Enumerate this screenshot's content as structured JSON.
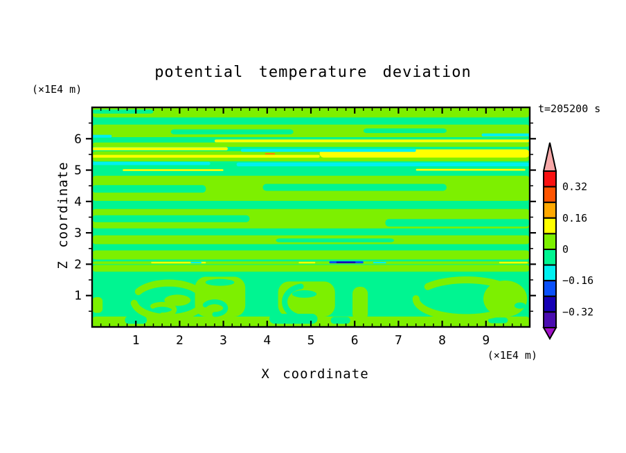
{
  "title": "potential temperature deviation",
  "annotations": {
    "time_label": "t=205200 s",
    "z_axis_unit": "(×1E4 m)",
    "x_axis_unit": "(×1E4 m)"
  },
  "axes": {
    "x": {
      "label": "X coordinate",
      "unit": "(×1E4 m)",
      "range": [
        0,
        10
      ],
      "major_ticks": [
        1,
        2,
        3,
        4,
        5,
        6,
        7,
        8,
        9
      ],
      "minor_step": 0.2
    },
    "z": {
      "label": "Z coordinate",
      "unit": "(×1E4 m)",
      "range": [
        0,
        7
      ],
      "major_ticks": [
        1,
        2,
        3,
        4,
        5,
        6
      ],
      "minor_step": 0.5
    }
  },
  "colorbar": {
    "labels": [
      "0.32",
      "0.16",
      "0",
      "−0.16",
      "−0.32"
    ],
    "labeled_boundaries": [
      1,
      3,
      5,
      7,
      9
    ],
    "segment_colors_top_to_bottom": [
      "#FA1111",
      "#FF5400",
      "#FFA800",
      "#FFFF00",
      "#7DF000",
      "#00F591",
      "#00F0F0",
      "#0A50FA",
      "#1500B4",
      "#4A0DB0"
    ],
    "over_color": "#F7A8A8",
    "under_color": "#A012C8",
    "outline_color": "#000000"
  },
  "chart_data": {
    "type": "heatmap",
    "subtype": "filled_contour",
    "title": "potential temperature deviation",
    "xlabel": "X coordinate",
    "ylabel": "Z coordinate",
    "x_unit": "(×1E4 m)",
    "z_unit": "(×1E4 m)",
    "time_annotation": "t=205200 s",
    "x_range": [
      0,
      10
    ],
    "z_range": [
      0,
      7
    ],
    "contour_interval": 0.08,
    "level_boundaries": [
      0.4,
      0.32,
      0.24,
      0.16,
      0.08,
      0,
      -0.08,
      -0.16,
      -0.24,
      -0.32,
      -0.4
    ],
    "labeled_levels": [
      0.32,
      0.16,
      0,
      -0.16,
      -0.32
    ],
    "palette": {
      "ch": "#7DF000",
      "sg": "#00F591",
      "ye": "#FFFF00",
      "cy": "#00F0F0",
      "or": "#FF8000",
      "bl": "#0A50FA",
      "nv": "#1500B4"
    },
    "legend_position": "right",
    "grid": false,
    "field": {
      "base": "sg",
      "rects": [
        {
          "x0": 0,
          "x1": 10,
          "z0": 6.68,
          "z1": 7.02,
          "c": "ch"
        },
        {
          "x0": 0,
          "x1": 10,
          "z0": 6.05,
          "z1": 6.45,
          "c": "ch"
        },
        {
          "x0": 0,
          "x1": 10,
          "z0": 5.74,
          "z1": 5.88,
          "c": "ch"
        },
        {
          "x0": 0,
          "x1": 10,
          "z0": 5.28,
          "z1": 5.6,
          "c": "ch"
        },
        {
          "x0": 0,
          "x1": 10,
          "z0": 4.02,
          "z1": 4.82,
          "c": "ch"
        },
        {
          "x0": 0,
          "x1": 10,
          "z0": 3.14,
          "z1": 3.76,
          "c": "ch"
        },
        {
          "x0": 0,
          "x1": 10,
          "z0": 2.64,
          "z1": 2.92,
          "c": "ch"
        },
        {
          "x0": 0,
          "x1": 10,
          "z0": 2.15,
          "z1": 2.44,
          "c": "ch"
        },
        {
          "x0": 0,
          "x1": 10,
          "z0": 2.0,
          "z1": 2.09,
          "c": "ch"
        },
        {
          "x0": 0,
          "x1": 10,
          "z0": 1.76,
          "z1": 1.98,
          "c": "ch"
        },
        {
          "x0": 0,
          "x1": 10,
          "z0": 0.0,
          "z1": 0.33,
          "c": "ch"
        },
        {
          "x0": 0,
          "x1": 1.4,
          "z0": 6.8,
          "z1": 6.93,
          "c": "sg"
        },
        {
          "x0": 1.8,
          "x1": 4.6,
          "z0": 6.14,
          "z1": 6.3,
          "c": "sg"
        },
        {
          "x0": 6.2,
          "x1": 8.1,
          "z0": 6.18,
          "z1": 6.33,
          "c": "sg"
        },
        {
          "x0": 0,
          "x1": 2.6,
          "z0": 4.28,
          "z1": 4.52,
          "c": "sg"
        },
        {
          "x0": 3.9,
          "x1": 8.1,
          "z0": 4.34,
          "z1": 4.56,
          "c": "sg"
        },
        {
          "x0": 0,
          "x1": 3.6,
          "z0": 3.34,
          "z1": 3.56,
          "c": "sg"
        },
        {
          "x0": 6.7,
          "x1": 10,
          "z0": 3.2,
          "z1": 3.44,
          "c": "sg"
        },
        {
          "x0": 4.2,
          "x1": 6.9,
          "z0": 2.7,
          "z1": 2.82,
          "c": "sg"
        },
        {
          "x0": 0.75,
          "x1": 1.25,
          "z0": 0.1,
          "z1": 0.34,
          "c": "sg"
        },
        {
          "x0": 5.45,
          "x1": 5.9,
          "z0": 0.1,
          "z1": 0.32,
          "c": "sg"
        },
        {
          "x0": 9.05,
          "x1": 9.5,
          "z0": 0.12,
          "z1": 0.3,
          "c": "sg"
        },
        {
          "x0": 2.35,
          "x1": 3.5,
          "z0": 0.33,
          "z1": 1.6,
          "c": "ch",
          "r": 16
        },
        {
          "x0": 4.25,
          "x1": 5.55,
          "z0": 0.33,
          "z1": 1.45,
          "c": "ch",
          "r": 16
        },
        {
          "x0": 5.95,
          "x1": 6.3,
          "z0": 0.2,
          "z1": 1.28,
          "c": "ch",
          "r": 10
        },
        {
          "x0": 0.0,
          "x1": 0.24,
          "z0": 0.45,
          "z1": 0.95,
          "c": "ch",
          "r": 6
        },
        {
          "x0": 4.05,
          "x1": 5.15,
          "z0": 0.1,
          "z1": 0.42,
          "c": "sg",
          "r": 8
        }
      ],
      "arcs": [
        {
          "cx": 1.75,
          "cz": 0.85,
          "rx": 0.8,
          "rz": 0.55,
          "a0": 150,
          "a1": -170,
          "w": 10,
          "c": "ch"
        },
        {
          "cx": 1.6,
          "cz": 0.55,
          "rx": 0.28,
          "rz": 0.17,
          "a0": -90,
          "a1": 140,
          "w": 7,
          "c": "ch"
        },
        {
          "cx": 8.55,
          "cz": 0.9,
          "rx": 1.15,
          "rz": 0.6,
          "a0": 140,
          "a1": -180,
          "w": 10,
          "c": "ch"
        },
        {
          "cx": 2.8,
          "cz": 0.6,
          "rx": 0.25,
          "rz": 0.2,
          "a0": -90,
          "a1": 150,
          "w": 7,
          "c": "sg"
        },
        {
          "cx": 4.85,
          "cz": 0.8,
          "rx": 0.45,
          "rz": 0.5,
          "a0": 100,
          "a1": 260,
          "w": 8,
          "c": "sg"
        }
      ],
      "ellipses": [
        {
          "cx": 1.95,
          "cz": 0.85,
          "rx": 0.3,
          "rz": 0.18,
          "c": "ch"
        },
        {
          "cx": 2.92,
          "cz": 1.42,
          "rx": 0.33,
          "rz": 0.11,
          "c": "sg"
        },
        {
          "cx": 4.85,
          "cz": 1.05,
          "rx": 0.28,
          "rz": 0.12,
          "c": "sg"
        },
        {
          "cx": 9.44,
          "cz": 0.9,
          "rx": 0.5,
          "rz": 0.58,
          "c": "ch"
        },
        {
          "cx": 9.78,
          "cz": 0.68,
          "rx": 0.13,
          "rz": 0.1,
          "c": "sg"
        }
      ],
      "streaks": [
        {
          "x0": 2.8,
          "x1": 10,
          "z": 5.93,
          "th": 0.09,
          "c": "ye"
        },
        {
          "x0": 0,
          "x1": 3.1,
          "z": 5.68,
          "th": 0.1,
          "c": "ye"
        },
        {
          "x0": 5.2,
          "x1": 10,
          "z": 5.53,
          "th": 0.26,
          "c": "ye"
        },
        {
          "x0": 0,
          "x1": 5.2,
          "z": 5.44,
          "th": 0.09,
          "c": "ye"
        },
        {
          "x0": 0.7,
          "x1": 3.0,
          "z": 5.0,
          "th": 0.06,
          "c": "ye"
        },
        {
          "x0": 7.4,
          "x1": 9.9,
          "z": 5.01,
          "th": 0.06,
          "c": "ye"
        },
        {
          "x0": 1.35,
          "x1": 2.6,
          "z": 2.05,
          "th": 0.05,
          "c": "ye"
        },
        {
          "x0": 4.72,
          "x1": 5.1,
          "z": 2.05,
          "th": 0.05,
          "c": "ye"
        },
        {
          "x0": 9.3,
          "x1": 9.95,
          "z": 2.05,
          "th": 0.05,
          "c": "ye"
        },
        {
          "x0": 0,
          "x1": 0.45,
          "z": 6.08,
          "th": 0.09,
          "c": "cy"
        },
        {
          "x0": 8.9,
          "x1": 10,
          "z": 6.12,
          "th": 0.1,
          "c": "cy"
        },
        {
          "x0": 3.4,
          "x1": 7.4,
          "z": 5.63,
          "th": 0.1,
          "c": "cy"
        },
        {
          "x0": 0,
          "x1": 2.7,
          "z": 5.21,
          "th": 0.1,
          "c": "cy"
        },
        {
          "x0": 3.3,
          "x1": 10,
          "z": 5.18,
          "th": 0.12,
          "c": "cy"
        },
        {
          "x0": 2.25,
          "x1": 2.5,
          "z": 2.05,
          "th": 0.05,
          "c": "cy"
        },
        {
          "x0": 6.42,
          "x1": 6.72,
          "z": 2.05,
          "th": 0.05,
          "c": "cy"
        },
        {
          "x0": 3.95,
          "x1": 4.18,
          "z": 5.52,
          "th": 0.05,
          "c": "or"
        },
        {
          "x0": 5.42,
          "x1": 6.2,
          "z": 2.06,
          "th": 0.07,
          "c": "bl"
        },
        {
          "x0": 5.58,
          "x1": 6.02,
          "z": 2.06,
          "th": 0.05,
          "c": "nv"
        }
      ]
    }
  }
}
